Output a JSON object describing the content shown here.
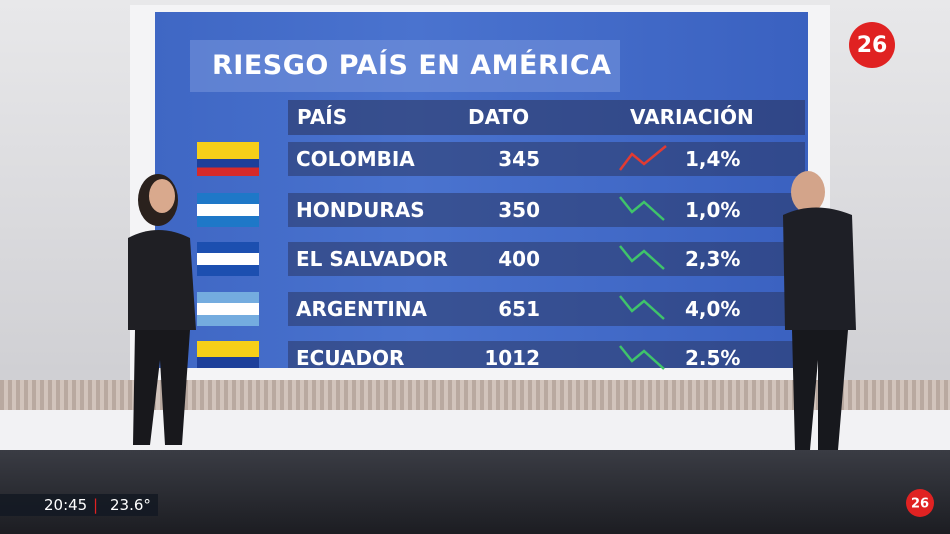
{
  "logo": "26",
  "screen": {
    "title": "RIESGO PAÍS EN AMÉRICA",
    "table": {
      "header": [
        "PAÍS",
        "DATO",
        "VARIACIÓN"
      ],
      "rows": [
        [
          "COLOMBIA",
          "345",
          "1,4%"
        ],
        [
          "HONDURAS",
          "350",
          "1,0%"
        ],
        [
          "EL SALVADOR",
          "400",
          "2,3%"
        ],
        [
          "ARGENTINA",
          "651",
          "4,0%"
        ],
        [
          "ECUADOR",
          "1012",
          "2.5%"
        ]
      ]
    }
  },
  "ticker": {
    "time": "20:45",
    "temperature": "23.6°"
  }
}
